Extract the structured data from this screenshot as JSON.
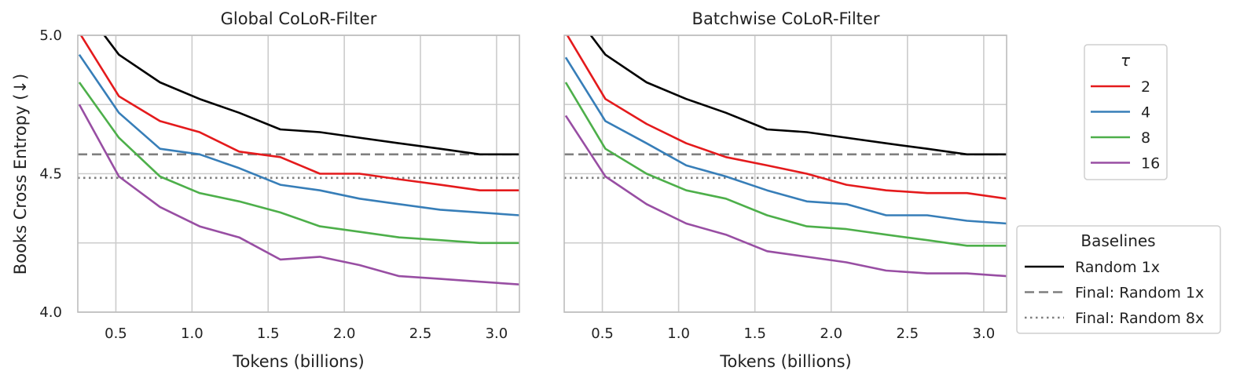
{
  "chart_data": [
    {
      "type": "line",
      "title": "Global CoLoR-Filter",
      "xlabel": "Tokens (billions)",
      "ylabel": "Books Cross Entropy (↓)",
      "xlim": [
        0.25,
        3.15
      ],
      "ylim": [
        4.0,
        5.0
      ],
      "xticks": [
        "0.5",
        "1.0",
        "1.5",
        "2.0",
        "2.5",
        "3.0"
      ],
      "yticks": [
        "4.0",
        "4.5",
        "5.0"
      ],
      "x": [
        0.26,
        0.52,
        0.79,
        1.05,
        1.31,
        1.58,
        1.84,
        2.1,
        2.36,
        2.63,
        2.89,
        3.15
      ],
      "series": [
        {
          "name": "Random 1x",
          "color": "#000000",
          "values": [
            5.12,
            4.93,
            4.83,
            4.77,
            4.72,
            4.66,
            4.65,
            4.63,
            4.61,
            4.59,
            4.57,
            4.57
          ]
        },
        {
          "name": "2",
          "color": "#e41a1c",
          "values": [
            5.01,
            4.78,
            4.69,
            4.65,
            4.58,
            4.56,
            4.5,
            4.5,
            4.48,
            4.46,
            4.44,
            4.44
          ]
        },
        {
          "name": "4",
          "color": "#377eb8",
          "values": [
            4.93,
            4.72,
            4.59,
            4.57,
            4.52,
            4.46,
            4.44,
            4.41,
            4.39,
            4.37,
            4.36,
            4.35
          ]
        },
        {
          "name": "8",
          "color": "#4daf4a",
          "values": [
            4.83,
            4.63,
            4.49,
            4.43,
            4.4,
            4.36,
            4.31,
            4.29,
            4.27,
            4.26,
            4.25,
            4.25
          ]
        },
        {
          "name": "16",
          "color": "#984ea3",
          "values": [
            4.75,
            4.49,
            4.38,
            4.31,
            4.27,
            4.19,
            4.2,
            4.17,
            4.13,
            4.12,
            4.11,
            4.1
          ]
        }
      ],
      "hlines": [
        {
          "name": "Final: Random 1x",
          "value": 4.57,
          "style": "dashed",
          "color": "#7f7f7f"
        },
        {
          "name": "Final: Random 8x",
          "value": 4.485,
          "style": "dotted",
          "color": "#7f7f7f"
        }
      ],
      "grid": true
    },
    {
      "type": "line",
      "title": "Batchwise CoLoR-Filter",
      "xlabel": "Tokens (billions)",
      "ylabel": "",
      "xlim": [
        0.25,
        3.15
      ],
      "ylim": [
        4.0,
        5.0
      ],
      "xticks": [
        "0.5",
        "1.0",
        "1.5",
        "2.0",
        "2.5",
        "3.0"
      ],
      "yticks": [],
      "x": [
        0.26,
        0.52,
        0.79,
        1.05,
        1.31,
        1.58,
        1.84,
        2.1,
        2.36,
        2.63,
        2.89,
        3.15
      ],
      "series": [
        {
          "name": "Random 1x",
          "color": "#000000",
          "values": [
            5.12,
            4.93,
            4.83,
            4.77,
            4.72,
            4.66,
            4.65,
            4.63,
            4.61,
            4.59,
            4.57,
            4.57
          ]
        },
        {
          "name": "2",
          "color": "#e41a1c",
          "values": [
            5.01,
            4.77,
            4.68,
            4.61,
            4.56,
            4.53,
            4.5,
            4.46,
            4.44,
            4.43,
            4.43,
            4.41
          ]
        },
        {
          "name": "4",
          "color": "#377eb8",
          "values": [
            4.92,
            4.69,
            4.61,
            4.53,
            4.49,
            4.44,
            4.4,
            4.39,
            4.35,
            4.35,
            4.33,
            4.32
          ]
        },
        {
          "name": "8",
          "color": "#4daf4a",
          "values": [
            4.83,
            4.59,
            4.5,
            4.44,
            4.41,
            4.35,
            4.31,
            4.3,
            4.28,
            4.26,
            4.24,
            4.24
          ]
        },
        {
          "name": "16",
          "color": "#984ea3",
          "values": [
            4.71,
            4.49,
            4.39,
            4.32,
            4.28,
            4.22,
            4.2,
            4.18,
            4.15,
            4.14,
            4.14,
            4.13
          ]
        }
      ],
      "hlines": [
        {
          "name": "Final: Random 1x",
          "value": 4.57,
          "style": "dashed",
          "color": "#7f7f7f"
        },
        {
          "name": "Final: Random 8x",
          "value": 4.485,
          "style": "dotted",
          "color": "#7f7f7f"
        }
      ],
      "grid": true
    }
  ],
  "legend_tau": {
    "title": "τ",
    "placement": "right",
    "items": [
      {
        "label": "2",
        "color": "#e41a1c",
        "style": "solid"
      },
      {
        "label": "4",
        "color": "#377eb8",
        "style": "solid"
      },
      {
        "label": "8",
        "color": "#4daf4a",
        "style": "solid"
      },
      {
        "label": "16",
        "color": "#984ea3",
        "style": "solid"
      }
    ]
  },
  "legend_baselines": {
    "title": "Baselines",
    "placement": "lower-right",
    "items": [
      {
        "label": "Random 1x",
        "color": "#000000",
        "style": "solid"
      },
      {
        "label": "Final: Random 1x",
        "color": "#7f7f7f",
        "style": "dashed"
      },
      {
        "label": "Final: Random 8x",
        "color": "#7f7f7f",
        "style": "dotted"
      }
    ]
  }
}
